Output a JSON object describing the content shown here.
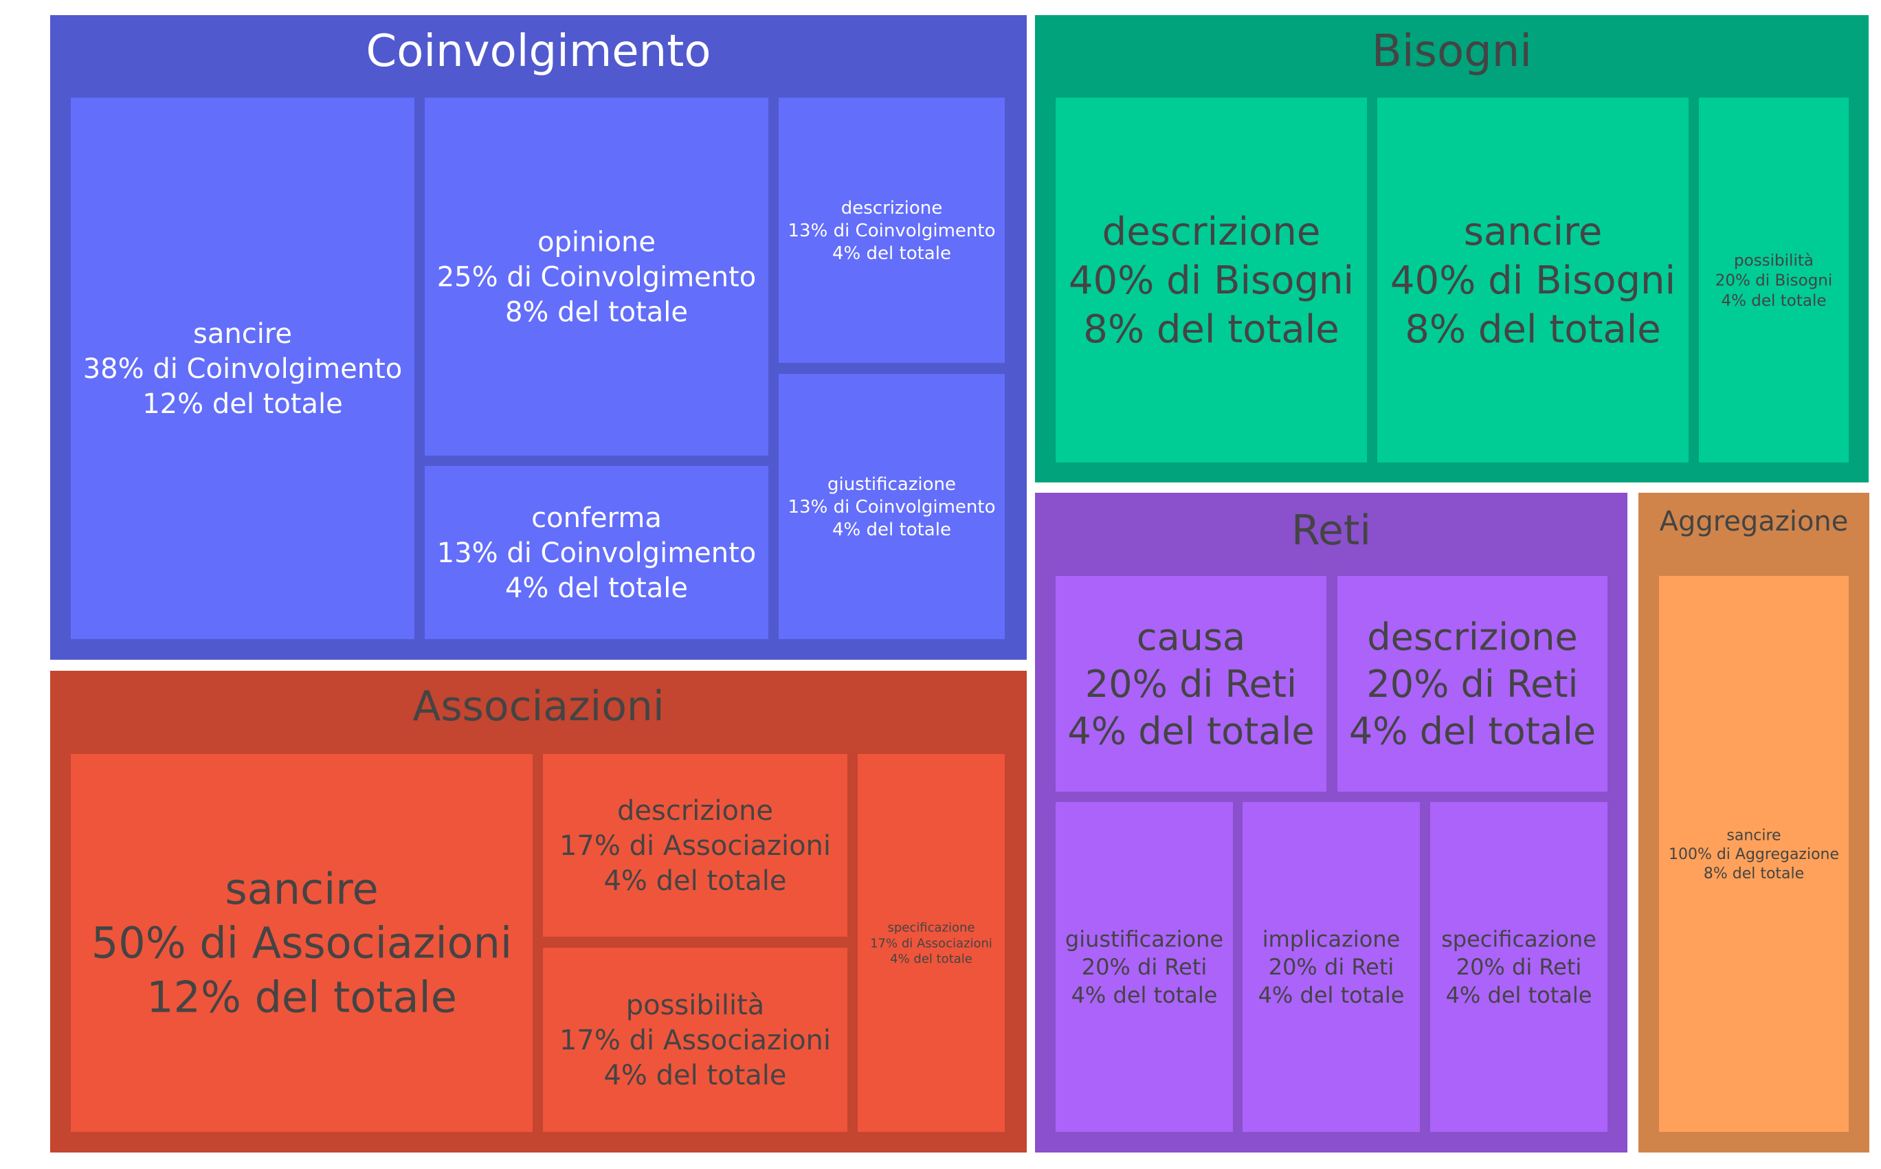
{
  "chart_data": {
    "type": "treemap",
    "groups": [
      {
        "name": "Coinvolgimento",
        "color": "#5159CF",
        "tile_color": "#636EFA",
        "text_color": "#ffffff",
        "children": [
          {
            "name": "sancire",
            "pct_parent": "38%",
            "pct_total": "12%"
          },
          {
            "name": "opinione",
            "pct_parent": "25%",
            "pct_total": "8%"
          },
          {
            "name": "conferma",
            "pct_parent": "13%",
            "pct_total": "4%"
          },
          {
            "name": "descrizione",
            "pct_parent": "13%",
            "pct_total": "4%"
          },
          {
            "name": "giustificazione",
            "pct_parent": "13%",
            "pct_total": "4%"
          }
        ]
      },
      {
        "name": "Bisogni",
        "color": "#00A37B",
        "tile_color": "#00CC96",
        "text_color": "#444444",
        "children": [
          {
            "name": "descrizione",
            "pct_parent": "40%",
            "pct_total": "8%"
          },
          {
            "name": "sancire",
            "pct_parent": "40%",
            "pct_total": "8%"
          },
          {
            "name": "possibilità",
            "pct_parent": "20%",
            "pct_total": "4%"
          }
        ]
      },
      {
        "name": "Associazioni",
        "color": "#C44530",
        "tile_color": "#EF553B",
        "text_color": "#444444",
        "children": [
          {
            "name": "sancire",
            "pct_parent": "50%",
            "pct_total": "12%"
          },
          {
            "name": "descrizione",
            "pct_parent": "17%",
            "pct_total": "4%"
          },
          {
            "name": "possibilità",
            "pct_parent": "17%",
            "pct_total": "4%"
          },
          {
            "name": "specificazione",
            "pct_parent": "17%",
            "pct_total": "4%"
          }
        ]
      },
      {
        "name": "Reti",
        "color": "#8B50CC",
        "tile_color": "#AB63FA",
        "text_color": "#444444",
        "children": [
          {
            "name": "causa",
            "pct_parent": "20%",
            "pct_total": "4%"
          },
          {
            "name": "descrizione",
            "pct_parent": "20%",
            "pct_total": "4%"
          },
          {
            "name": "giustificazione",
            "pct_parent": "20%",
            "pct_total": "4%"
          },
          {
            "name": "implicazione",
            "pct_parent": "20%",
            "pct_total": "4%"
          },
          {
            "name": "specificazione",
            "pct_parent": "20%",
            "pct_total": "4%"
          }
        ]
      },
      {
        "name": "Aggregazione",
        "color": "#D0844A",
        "tile_color": "#FFA15A",
        "text_color": "#444444",
        "children": [
          {
            "name": "sancire",
            "pct_parent": "100%",
            "pct_total": "8%"
          }
        ]
      }
    ],
    "label_templates": {
      "of_parent": " di ",
      "of_total": " del totale"
    }
  }
}
